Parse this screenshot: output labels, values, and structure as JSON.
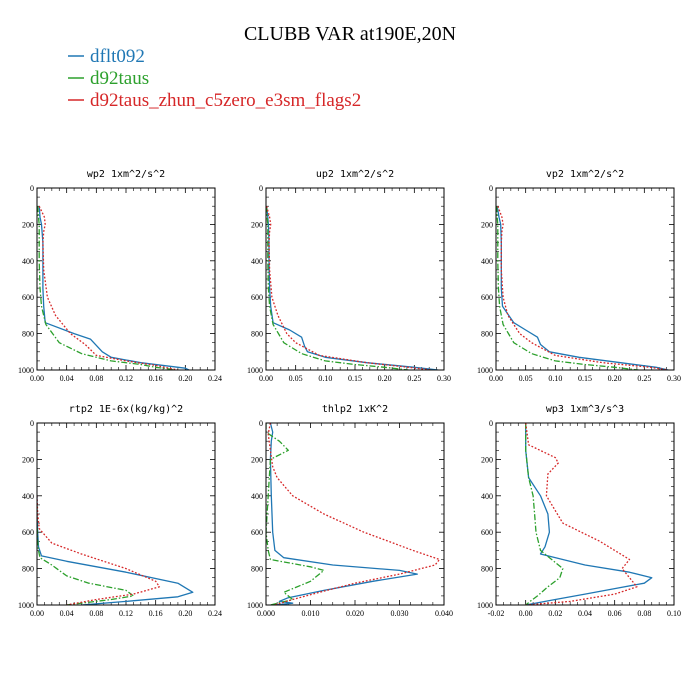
{
  "title": "CLUBB VAR at190E,20N",
  "legend": [
    {
      "name": "dflt092",
      "color": "#1f77b4",
      "dash": "solid"
    },
    {
      "name": "d92taus",
      "color": "#2ca02c",
      "dash": "dashdot"
    },
    {
      "name": "d92taus_zhun_c5zero_e3sm_flags2",
      "color": "#d62728",
      "dash": "dot"
    }
  ],
  "chart_data": [
    {
      "type": "line",
      "title": "wp2  1xm^2/s^2",
      "xlim": [
        0,
        0.24
      ],
      "ylim": [
        1000,
        0
      ],
      "xticks": [
        0.0,
        0.04,
        0.08,
        0.12,
        0.16,
        0.2,
        0.24
      ],
      "xtick_labels": [
        "0.00",
        "0.04",
        "0.08",
        "0.12",
        "0.16",
        "0.20",
        "0.24"
      ],
      "yticks": [
        0,
        200,
        400,
        600,
        800,
        1000
      ],
      "ytick_labels": [
        "0",
        "200",
        "400",
        "600",
        "800",
        "1000"
      ],
      "series": [
        {
          "x": [
            0.003,
            0.004,
            0.006,
            0.008,
            0.008,
            0.008,
            0.009,
            0.011,
            0.05,
            0.072,
            0.088,
            0.1,
            0.14,
            0.2,
            0.205
          ],
          "y": [
            100,
            160,
            200,
            300,
            400,
            550,
            650,
            740,
            800,
            830,
            900,
            930,
            960,
            990,
            1000
          ]
        },
        {
          "x": [
            0.001,
            0.002,
            0.003,
            0.003,
            0.003,
            0.004,
            0.006,
            0.012,
            0.03,
            0.06,
            0.1,
            0.14,
            0.16,
            0.18,
            0.185
          ],
          "y": [
            100,
            160,
            200,
            300,
            400,
            550,
            650,
            750,
            850,
            910,
            950,
            970,
            985,
            995,
            1000
          ]
        },
        {
          "x": [
            0.003,
            0.01,
            0.011,
            0.009,
            0.008,
            0.009,
            0.014,
            0.025,
            0.045,
            0.065,
            0.08,
            0.12,
            0.16,
            0.19
          ],
          "y": [
            100,
            160,
            200,
            240,
            300,
            450,
            600,
            700,
            800,
            860,
            920,
            950,
            975,
            1000
          ]
        }
      ]
    },
    {
      "type": "line",
      "title": "up2  1xm^2/s^2",
      "xlim": [
        0,
        0.3
      ],
      "ylim": [
        1000,
        0
      ],
      "xticks": [
        0.0,
        0.05,
        0.1,
        0.15,
        0.2,
        0.25,
        0.3
      ],
      "xtick_labels": [
        "0.00",
        "0.05",
        "0.10",
        "0.15",
        "0.20",
        "0.25",
        "0.30"
      ],
      "yticks": [
        0,
        200,
        400,
        600,
        800,
        1000
      ],
      "ytick_labels": [
        "0",
        "200",
        "400",
        "600",
        "800",
        "1000"
      ],
      "series": [
        {
          "x": [
            0.001,
            0.003,
            0.004,
            0.005,
            0.005,
            0.006,
            0.008,
            0.012,
            0.04,
            0.06,
            0.065,
            0.07,
            0.1,
            0.17,
            0.25,
            0.29
          ],
          "y": [
            100,
            160,
            200,
            300,
            400,
            550,
            650,
            740,
            780,
            820,
            870,
            900,
            930,
            960,
            985,
            1000
          ]
        },
        {
          "x": [
            0.001,
            0.002,
            0.003,
            0.003,
            0.003,
            0.004,
            0.006,
            0.012,
            0.03,
            0.06,
            0.1,
            0.15,
            0.2,
            0.24
          ],
          "y": [
            100,
            160,
            200,
            300,
            400,
            550,
            650,
            750,
            850,
            910,
            950,
            970,
            985,
            1000
          ]
        },
        {
          "x": [
            0.001,
            0.006,
            0.008,
            0.006,
            0.005,
            0.006,
            0.01,
            0.02,
            0.035,
            0.05,
            0.09,
            0.17,
            0.24,
            0.28
          ],
          "y": [
            100,
            160,
            200,
            240,
            300,
            450,
            600,
            700,
            800,
            850,
            920,
            960,
            985,
            1000
          ]
        }
      ]
    },
    {
      "type": "line",
      "title": "vp2  1xm^2/s^2",
      "xlim": [
        0,
        0.3
      ],
      "ylim": [
        1000,
        0
      ],
      "xticks": [
        0.0,
        0.05,
        0.1,
        0.15,
        0.2,
        0.25,
        0.3
      ],
      "xtick_labels": [
        "0.00",
        "0.05",
        "0.10",
        "0.15",
        "0.20",
        "0.25",
        "0.30"
      ],
      "yticks": [
        0,
        200,
        400,
        600,
        800,
        1000
      ],
      "ytick_labels": [
        "0",
        "200",
        "400",
        "600",
        "800",
        "1000"
      ],
      "series": [
        {
          "x": [
            0.002,
            0.005,
            0.008,
            0.009,
            0.009,
            0.009,
            0.011,
            0.03,
            0.05,
            0.07,
            0.075,
            0.09,
            0.14,
            0.21,
            0.27,
            0.29
          ],
          "y": [
            100,
            160,
            200,
            300,
            400,
            550,
            650,
            740,
            780,
            820,
            860,
            900,
            930,
            960,
            985,
            1000
          ]
        },
        {
          "x": [
            0.001,
            0.002,
            0.003,
            0.003,
            0.003,
            0.004,
            0.006,
            0.012,
            0.03,
            0.06,
            0.1,
            0.15,
            0.2,
            0.24
          ],
          "y": [
            100,
            160,
            200,
            300,
            400,
            550,
            650,
            750,
            850,
            910,
            950,
            970,
            985,
            1000
          ]
        },
        {
          "x": [
            0.003,
            0.01,
            0.012,
            0.01,
            0.009,
            0.009,
            0.012,
            0.02,
            0.04,
            0.06,
            0.1,
            0.18,
            0.26,
            0.29
          ],
          "y": [
            100,
            160,
            200,
            240,
            300,
            450,
            600,
            700,
            800,
            850,
            920,
            960,
            985,
            1000
          ]
        }
      ]
    },
    {
      "type": "line",
      "title": "rtp2  1E-6x(kg/kg)^2",
      "xlim": [
        0,
        0.24
      ],
      "ylim": [
        1000,
        0
      ],
      "xticks": [
        0.0,
        0.04,
        0.08,
        0.12,
        0.16,
        0.2,
        0.24
      ],
      "xtick_labels": [
        "0.00",
        "0.04",
        "0.08",
        "0.12",
        "0.16",
        "0.20",
        "0.24"
      ],
      "yticks": [
        0,
        200,
        400,
        600,
        800,
        1000
      ],
      "ytick_labels": [
        "0",
        "200",
        "400",
        "600",
        "800",
        "1000"
      ],
      "series": [
        {
          "x": [
            0.0,
            0.0,
            0.001,
            0.002,
            0.006,
            0.04,
            0.12,
            0.19,
            0.21,
            0.19,
            0.12,
            0.06
          ],
          "y": [
            400,
            500,
            600,
            680,
            730,
            760,
            820,
            880,
            930,
            955,
            980,
            1000
          ]
        },
        {
          "x": [
            0.0,
            0.0,
            0.001,
            0.002,
            0.004,
            0.02,
            0.04,
            0.07,
            0.12,
            0.13,
            0.1,
            0.04
          ],
          "y": [
            450,
            550,
            650,
            700,
            740,
            780,
            840,
            880,
            920,
            950,
            970,
            1000
          ]
        },
        {
          "x": [
            0.0,
            0.001,
            0.003,
            0.02,
            0.06,
            0.12,
            0.16,
            0.165,
            0.13,
            0.08,
            0.04
          ],
          "y": [
            400,
            500,
            580,
            660,
            720,
            800,
            870,
            900,
            940,
            970,
            1000
          ]
        }
      ]
    },
    {
      "type": "line",
      "title": "thlp2  1xK^2",
      "xlim": [
        0,
        0.04
      ],
      "ylim": [
        1000,
        0
      ],
      "xticks": [
        0.0,
        0.01,
        0.02,
        0.03,
        0.04
      ],
      "xtick_labels": [
        "0.000",
        "0.010",
        "0.020",
        "0.030",
        "0.040"
      ],
      "yticks": [
        0,
        200,
        400,
        600,
        800,
        1000
      ],
      "ytick_labels": [
        "0",
        "200",
        "400",
        "600",
        "800",
        "1000"
      ],
      "series": [
        {
          "x": [
            0.001,
            0.0015,
            0.0012,
            0.001,
            0.0012,
            0.0015,
            0.002,
            0.004,
            0.015,
            0.03,
            0.034,
            0.024,
            0.013,
            0.005,
            0.003,
            0.006,
            0.002
          ],
          "y": [
            0,
            50,
            100,
            200,
            400,
            600,
            700,
            740,
            780,
            810,
            830,
            870,
            920,
            960,
            980,
            990,
            1000
          ]
        },
        {
          "x": [
            0.0,
            0.0,
            0.003,
            0.005,
            0.001,
            0.0005,
            0.0,
            0.0005,
            0.001,
            0.01,
            0.013,
            0.01,
            0.004,
            0.006,
            0.001
          ],
          "y": [
            0,
            50,
            100,
            150,
            200,
            400,
            600,
            700,
            750,
            790,
            810,
            870,
            930,
            970,
            1000
          ]
        },
        {
          "x": [
            0.001,
            0.0005,
            0.001,
            0.0015,
            0.0025,
            0.006,
            0.013,
            0.022,
            0.033,
            0.039,
            0.038,
            0.03,
            0.02,
            0.012,
            0.006,
            0.002
          ],
          "y": [
            0,
            60,
            150,
            240,
            300,
            400,
            500,
            600,
            700,
            750,
            780,
            830,
            880,
            930,
            970,
            1000
          ]
        }
      ]
    },
    {
      "type": "line",
      "title": "wp3  1xm^3/s^3",
      "xlim": [
        -0.02,
        0.1
      ],
      "ylim": [
        1000,
        0
      ],
      "xticks": [
        -0.02,
        0.0,
        0.02,
        0.04,
        0.06,
        0.08,
        0.1
      ],
      "xtick_labels": [
        "-0.02",
        "0.00",
        "0.02",
        "0.04",
        "0.06",
        "0.08",
        "0.10"
      ],
      "yticks": [
        0,
        200,
        400,
        600,
        800,
        1000
      ],
      "ytick_labels": [
        "0",
        "200",
        "400",
        "600",
        "800",
        "1000"
      ],
      "series": [
        {
          "x": [
            0.0,
            0.0,
            0.002,
            0.01,
            0.015,
            0.016,
            0.013,
            0.01,
            0.04,
            0.07,
            0.085,
            0.08,
            0.06,
            0.04,
            0.02,
            0.0
          ],
          "y": [
            0,
            150,
            300,
            400,
            500,
            600,
            680,
            720,
            780,
            820,
            850,
            880,
            910,
            940,
            970,
            1000
          ]
        },
        {
          "x": [
            0.0,
            0.0,
            0.002,
            0.005,
            0.006,
            0.007,
            0.01,
            0.025,
            0.023,
            0.015,
            0.008,
            0.003,
            0.0
          ],
          "y": [
            0,
            150,
            300,
            400,
            500,
            600,
            700,
            800,
            850,
            900,
            950,
            980,
            1000
          ]
        },
        {
          "x": [
            0.0,
            0.002,
            0.02,
            0.022,
            0.015,
            0.014,
            0.025,
            0.05,
            0.07,
            0.065,
            0.07,
            0.075,
            0.06,
            0.03,
            0.0
          ],
          "y": [
            0,
            120,
            190,
            220,
            280,
            400,
            550,
            650,
            750,
            800,
            850,
            900,
            940,
            980,
            1000
          ]
        }
      ]
    }
  ]
}
